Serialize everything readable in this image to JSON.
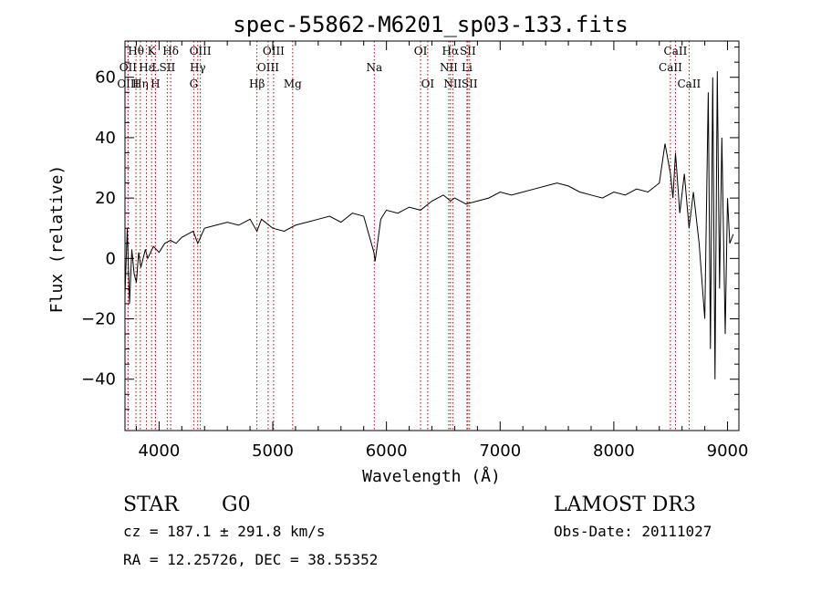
{
  "chart_data": {
    "type": "line",
    "title": "spec-55862-M6201_sp03-133.fits",
    "xlabel": "Wavelength (Å)",
    "ylabel": "Flux (relative)",
    "xlim": [
      3700,
      9100
    ],
    "ylim": [
      -57,
      72
    ],
    "x_ticks": [
      4000,
      5000,
      6000,
      7000,
      8000,
      9000
    ],
    "y_ticks": [
      -40,
      -20,
      0,
      20,
      40,
      60
    ],
    "x_tick_labels": [
      "4000",
      "5000",
      "6000",
      "7000",
      "8000",
      "9000"
    ],
    "y_tick_labels": [
      "−40",
      "−20",
      "0",
      "20",
      "40",
      "60"
    ],
    "series": [
      {
        "name": "spectrum",
        "x": [
          3700,
          3720,
          3740,
          3760,
          3780,
          3800,
          3820,
          3840,
          3860,
          3880,
          3900,
          3950,
          4000,
          4050,
          4100,
          4150,
          4200,
          4250,
          4300,
          4340,
          4400,
          4500,
          4600,
          4700,
          4800,
          4861,
          4900,
          5000,
          5100,
          5200,
          5300,
          5400,
          5500,
          5600,
          5700,
          5800,
          5890,
          5900,
          5950,
          6000,
          6100,
          6200,
          6300,
          6400,
          6500,
          6563,
          6600,
          6700,
          6800,
          6900,
          7000,
          7100,
          7200,
          7300,
          7400,
          7500,
          7600,
          7700,
          7800,
          7900,
          8000,
          8100,
          8200,
          8300,
          8400,
          8450,
          8498,
          8520,
          8542,
          8580,
          8620,
          8662,
          8700,
          8750,
          8800,
          8830,
          8850,
          8870,
          8890,
          8910,
          8930,
          8950,
          8980,
          9000,
          9020,
          9050
        ],
        "y": [
          -12,
          10,
          -15,
          3,
          -5,
          -8,
          2,
          -3,
          0,
          3,
          0,
          4,
          2,
          5,
          6,
          5,
          7,
          8,
          9,
          5,
          10,
          11,
          12,
          11,
          13,
          9,
          13,
          10,
          9,
          11,
          12,
          13,
          14,
          12,
          15,
          14,
          2,
          -1,
          13,
          16,
          15,
          17,
          16,
          19,
          21,
          19,
          20,
          18,
          19,
          20,
          22,
          21,
          22,
          23,
          24,
          25,
          24,
          22,
          21,
          20,
          22,
          21,
          23,
          22,
          25,
          38,
          28,
          20,
          35,
          15,
          28,
          10,
          22,
          5,
          -20,
          55,
          -30,
          60,
          -40,
          62,
          -10,
          40,
          -25,
          20,
          5,
          8
        ]
      }
    ],
    "spectral_lines": [
      {
        "label": "Hθ",
        "wl": 3797,
        "row": 1
      },
      {
        "label": "OII",
        "wl": 3727,
        "row": 2
      },
      {
        "label": "OIII",
        "wl": 3727,
        "row": 3
      },
      {
        "label": "Hη",
        "wl": 3835,
        "row": 3
      },
      {
        "label": "Hε",
        "wl": 3889,
        "row": 2
      },
      {
        "label": "K",
        "wl": 3934,
        "row": 1
      },
      {
        "label": "L",
        "wl": 3968,
        "row": 2
      },
      {
        "label": "H",
        "wl": 3968,
        "row": 3
      },
      {
        "label": "Hδ",
        "wl": 4102,
        "row": 1
      },
      {
        "label": "SII",
        "wl": 4072,
        "row": 2
      },
      {
        "label": "OIII",
        "wl": 4363,
        "row": 1
      },
      {
        "label": "Hγ",
        "wl": 4340,
        "row": 2
      },
      {
        "label": "G",
        "wl": 4305,
        "row": 3
      },
      {
        "label": "Hβ",
        "wl": 4861,
        "row": 3
      },
      {
        "label": "OIII",
        "wl": 5007,
        "row": 1
      },
      {
        "label": "OIII",
        "wl": 4959,
        "row": 2
      },
      {
        "label": "Mg",
        "wl": 5175,
        "row": 3
      },
      {
        "label": "Na",
        "wl": 5893,
        "row": 2
      },
      {
        "label": "OI",
        "wl": 6300,
        "row": 1
      },
      {
        "label": "OI",
        "wl": 6363,
        "row": 3
      },
      {
        "label": "Hα",
        "wl": 6563,
        "row": 1
      },
      {
        "label": "NII",
        "wl": 6548,
        "row": 2
      },
      {
        "label": "NII",
        "wl": 6583,
        "row": 3
      },
      {
        "label": "SII",
        "wl": 6716,
        "row": 1
      },
      {
        "label": "Li",
        "wl": 6708,
        "row": 2
      },
      {
        "label": "SII",
        "wl": 6731,
        "row": 3
      },
      {
        "label": "CaII",
        "wl": 8542,
        "row": 1
      },
      {
        "label": "CaII",
        "wl": 8498,
        "row": 2
      },
      {
        "label": "CaII",
        "wl": 8662,
        "row": 3
      }
    ],
    "line_color": "#c00000",
    "spectrum_color": "#000000"
  },
  "info": {
    "object_class": "STAR",
    "subclass": "G0",
    "survey": "LAMOST DR3",
    "cz": "cz = 187.1 ± 291.8 km/s",
    "obs_date": "Obs-Date: 20111027",
    "coords": "RA =  12.25726, DEC =  38.55352"
  }
}
